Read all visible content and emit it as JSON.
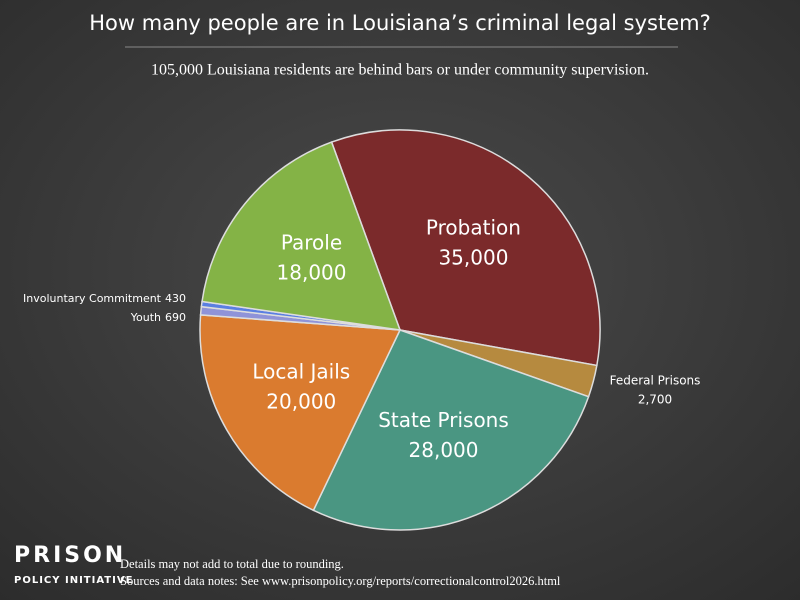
{
  "chart_data": {
    "type": "pie",
    "title": "How many people are in Louisiana’s criminal legal system?",
    "subtitle": "105,000 Louisiana residents are behind bars or under community supervision.",
    "categories": [
      "Probation",
      "Federal Prisons",
      "State Prisons",
      "Local Jails",
      "Youth",
      "Involuntary Commitment",
      "Parole"
    ],
    "values": [
      35000,
      2700,
      28000,
      20000,
      690,
      430,
      18000
    ],
    "value_labels": [
      "35,000",
      "2,700",
      "28,000",
      "20,000",
      "690",
      "430",
      "18,000"
    ],
    "colors": [
      "#7b2a2b",
      "#b68a3f",
      "#4a9682",
      "#da7b2f",
      "#8f93d8",
      "#5a7fe2",
      "#84b346"
    ]
  },
  "footer": {
    "logo_line1": "PRISON",
    "logo_line2": "POLICY INITIATIVE",
    "notes": [
      "Details may not add to total due to rounding.",
      "Sources and data notes: See www.prisonpolicy.org/reports/correctionalcontrol2026.html"
    ]
  }
}
